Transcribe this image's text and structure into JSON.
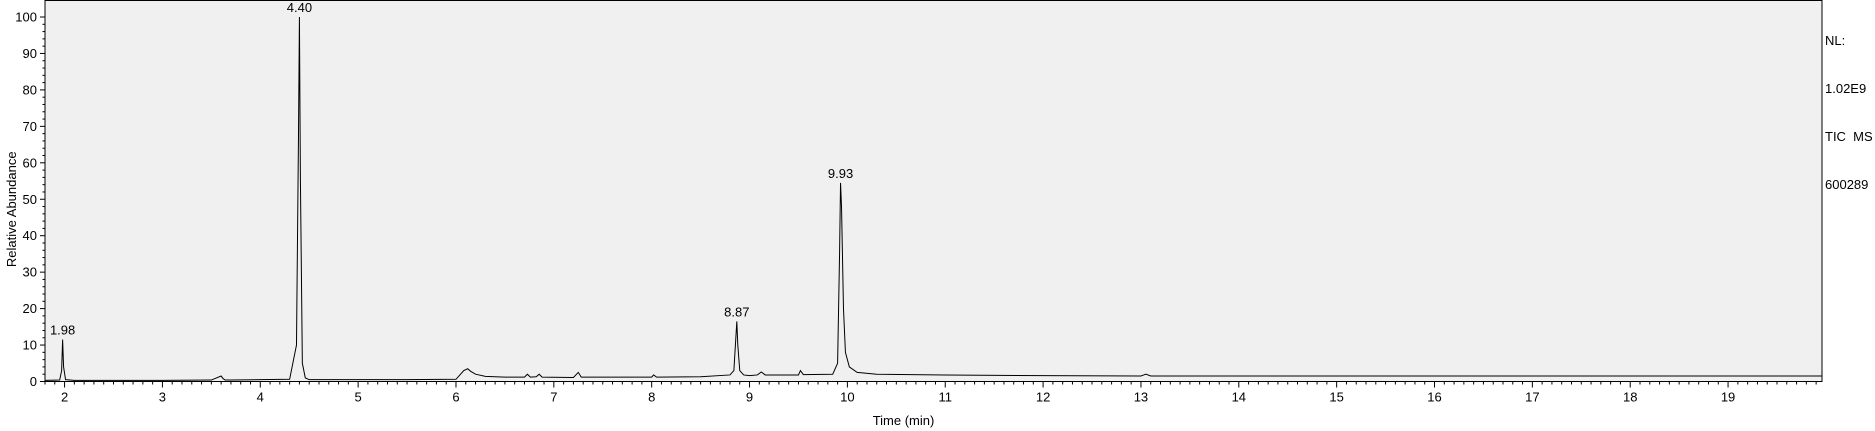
{
  "chart_data": {
    "type": "line",
    "xlabel": "Time (min)",
    "ylabel": "Relative Abundance",
    "xlim": [
      1.8,
      19.96
    ],
    "ylim": [
      0,
      100
    ],
    "x_ticks": [
      2,
      3,
      4,
      5,
      6,
      7,
      8,
      9,
      10,
      11,
      12,
      13,
      14,
      15,
      16,
      17,
      18,
      19
    ],
    "y_ticks": [
      0,
      10,
      20,
      30,
      40,
      50,
      60,
      70,
      80,
      90,
      100
    ],
    "grid": false,
    "info_lines": [
      "NL:",
      "1.02E9",
      "TIC  MS",
      "600289"
    ],
    "peak_labels": [
      {
        "label": "1.98",
        "x": 1.98,
        "y": 11.5
      },
      {
        "label": "4.40",
        "x": 4.4,
        "y": 100
      },
      {
        "label": "8.87",
        "x": 8.87,
        "y": 16.5
      },
      {
        "label": "9.93",
        "x": 9.93,
        "y": 54.5
      }
    ],
    "series": [
      {
        "color": "#000000",
        "x": [
          1.8,
          1.95,
          1.97,
          1.98,
          1.99,
          2.01,
          2.1,
          2.5,
          3.0,
          3.5,
          3.6,
          3.62,
          3.64,
          3.7,
          4.0,
          4.3,
          4.37,
          4.39,
          4.4,
          4.41,
          4.43,
          4.46,
          4.5,
          5.0,
          5.5,
          6.0,
          6.08,
          6.12,
          6.15,
          6.2,
          6.3,
          6.5,
          6.7,
          6.73,
          6.76,
          6.82,
          6.85,
          6.88,
          7.2,
          7.25,
          7.28,
          8.0,
          8.02,
          8.05,
          8.5,
          8.8,
          8.84,
          8.86,
          8.87,
          8.88,
          8.9,
          8.94,
          9.0,
          9.08,
          9.12,
          9.16,
          9.5,
          9.52,
          9.55,
          9.85,
          9.9,
          9.92,
          9.93,
          9.94,
          9.96,
          9.98,
          10.02,
          10.1,
          10.3,
          11.0,
          12.0,
          13.0,
          13.05,
          13.1,
          14.0,
          15.0,
          16.0,
          17.0,
          18.0,
          19.0,
          19.96
        ],
        "y": [
          0.3,
          0.4,
          3.0,
          11.5,
          4.0,
          0.5,
          0.3,
          0.3,
          0.3,
          0.4,
          1.5,
          0.8,
          0.4,
          0.4,
          0.5,
          0.6,
          10.0,
          66.0,
          100,
          56.0,
          5.0,
          1.0,
          0.5,
          0.5,
          0.5,
          0.6,
          3.0,
          3.5,
          2.8,
          2.0,
          1.4,
          1.2,
          1.2,
          2.0,
          1.2,
          1.3,
          2.0,
          1.2,
          1.1,
          2.5,
          1.2,
          1.2,
          1.8,
          1.2,
          1.3,
          1.8,
          3.0,
          12.0,
          16.5,
          10.0,
          3.0,
          1.8,
          1.6,
          1.8,
          2.6,
          1.8,
          1.8,
          3.0,
          1.9,
          2.0,
          5.0,
          35.0,
          54.5,
          48.0,
          20.0,
          8.0,
          4.0,
          2.5,
          2.0,
          1.8,
          1.6,
          1.5,
          2.0,
          1.5,
          1.5,
          1.5,
          1.5,
          1.5,
          1.5,
          1.5,
          1.5
        ]
      }
    ]
  }
}
